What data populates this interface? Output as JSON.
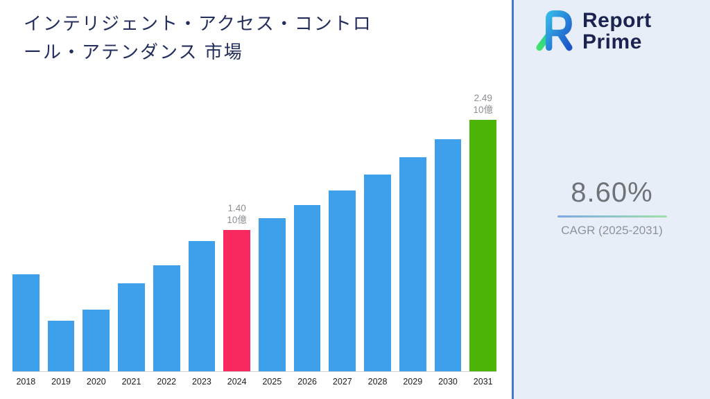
{
  "title": {
    "line1": "インテリジェント・アクセス・コントロ",
    "line2": "ール・アテンダンス 市場"
  },
  "logo": {
    "line1": "Report",
    "line2": "Prime"
  },
  "stats": {
    "cagr_value": "8.60%",
    "cagr_label": "CAGR (2025-2031)"
  },
  "chart_data": {
    "type": "bar",
    "title": "インテリジェント・アクセス・コントロール・アテンダンス 市場",
    "unit": "10億",
    "categories": [
      2018,
      2019,
      2020,
      2021,
      2022,
      2023,
      2024,
      2025,
      2026,
      2027,
      2028,
      2029,
      2030,
      2031
    ],
    "values": [
      0.96,
      0.5,
      0.61,
      0.87,
      1.05,
      1.29,
      1.4,
      1.52,
      1.65,
      1.79,
      1.95,
      2.12,
      2.3,
      2.49
    ],
    "ylim": [
      0,
      2.8
    ],
    "grid": false,
    "legend": false,
    "annotations": [
      {
        "year": 2024,
        "value": "1.40",
        "unit": "10億"
      },
      {
        "year": 2031,
        "value": "2.49",
        "unit": "10億"
      }
    ],
    "bar_colors": {
      "default": "#3ea0ea",
      "2024": "#f7295f",
      "2031": "#4db508"
    }
  }
}
